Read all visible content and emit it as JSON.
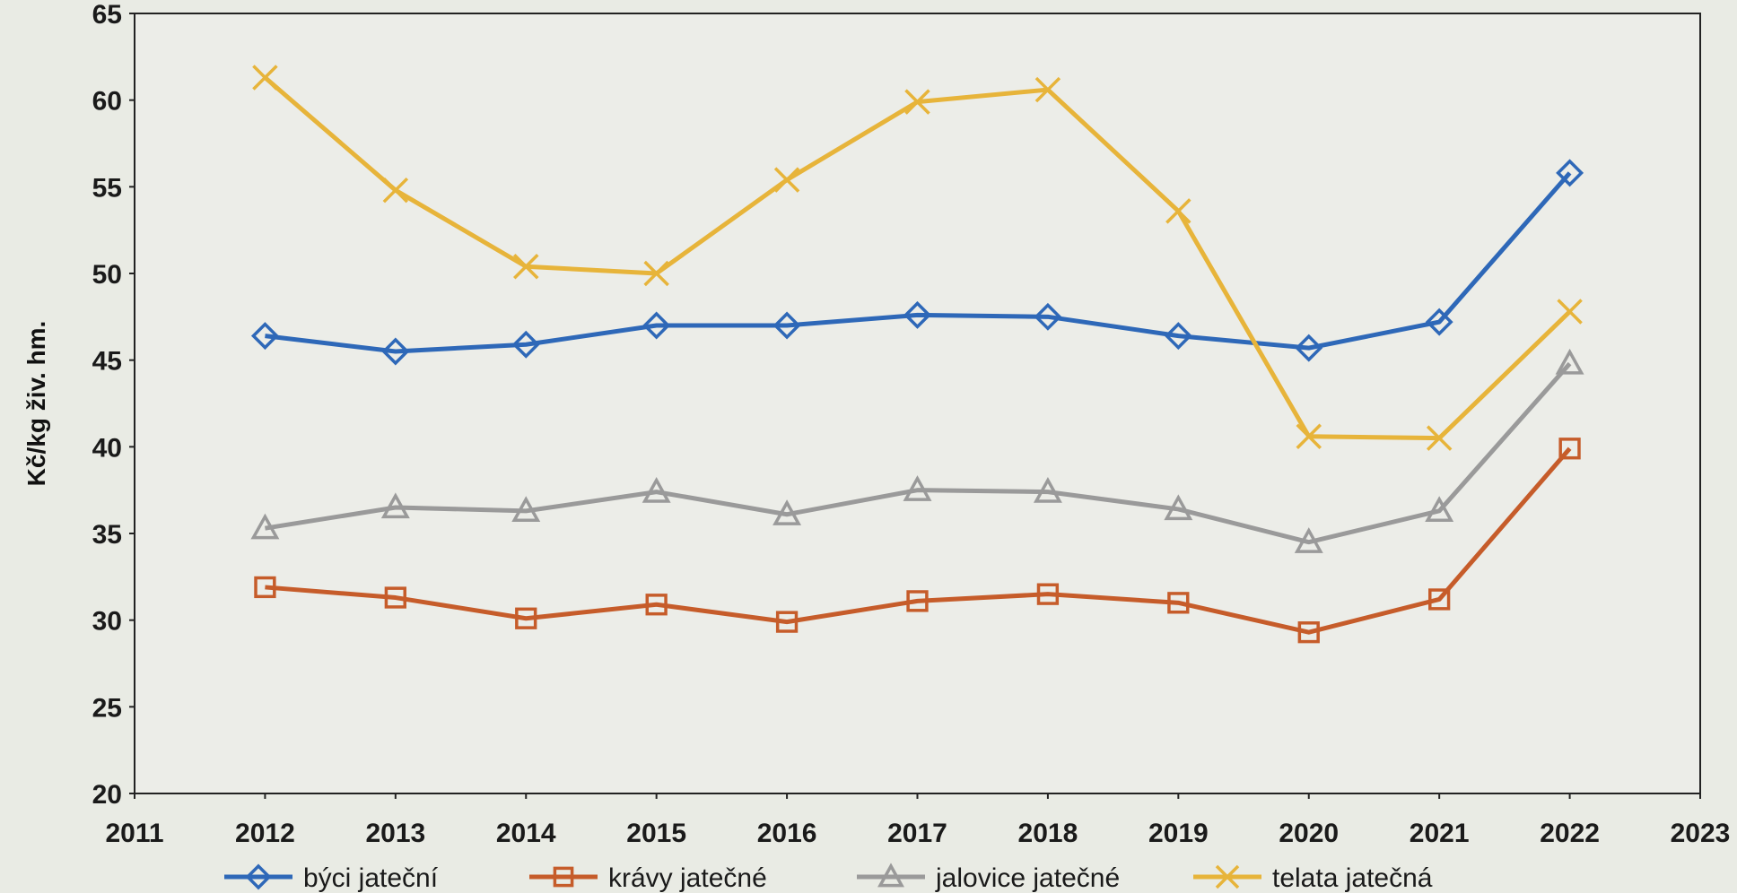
{
  "chart_data": {
    "type": "line",
    "title": "",
    "xlabel": "",
    "ylabel": "Kč/kg živ. hm.",
    "xlim": [
      2011,
      2023
    ],
    "ylim": [
      20,
      65
    ],
    "x_ticks": [
      "2011",
      "2012",
      "2013",
      "2014",
      "2015",
      "2016",
      "2017",
      "2018",
      "2019",
      "2020",
      "2021",
      "2022",
      "2023"
    ],
    "y_ticks": [
      "20",
      "25",
      "30",
      "35",
      "40",
      "45",
      "50",
      "55",
      "60",
      "65"
    ],
    "x": [
      2012,
      2013,
      2014,
      2015,
      2016,
      2017,
      2018,
      2019,
      2020,
      2021,
      2022
    ],
    "grid": false,
    "legend_position": "bottom",
    "series": [
      {
        "name": "býci jateční",
        "color": "#2e68b8",
        "marker": "diamond",
        "values": [
          46.4,
          45.5,
          45.9,
          47.0,
          47.0,
          47.6,
          47.5,
          46.4,
          45.7,
          47.2,
          55.8
        ]
      },
      {
        "name": "krávy jatečné",
        "color": "#c65c2a",
        "marker": "square",
        "values": [
          31.9,
          31.3,
          30.1,
          30.9,
          29.9,
          31.1,
          31.5,
          31.0,
          29.3,
          31.2,
          39.9
        ]
      },
      {
        "name": "jalovice jatečné",
        "color": "#9a9a9a",
        "marker": "triangle",
        "values": [
          35.3,
          36.5,
          36.3,
          37.4,
          36.1,
          37.5,
          37.4,
          36.4,
          34.5,
          36.3,
          44.8
        ]
      },
      {
        "name": "telata jatečná",
        "color": "#e7b43a",
        "marker": "x",
        "values": [
          61.3,
          54.8,
          50.4,
          50.0,
          55.4,
          59.9,
          60.6,
          53.6,
          40.6,
          40.5,
          47.8
        ]
      }
    ]
  }
}
